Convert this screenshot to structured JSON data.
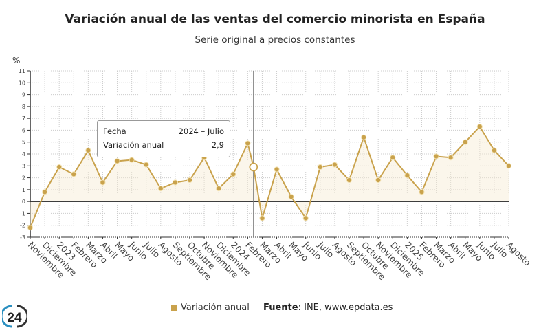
{
  "chart_data": {
    "type": "line",
    "title": "Variación anual de las ventas del comercio minorista en España",
    "subtitle": "Serie original a precios constantes",
    "ylabel": "%",
    "ylim": [
      -3,
      11
    ],
    "yticks": [
      -3,
      -2,
      -1,
      0,
      1,
      2,
      3,
      4,
      5,
      6,
      7,
      8,
      9,
      10,
      11
    ],
    "grid": true,
    "legend_placement": "bottom",
    "categories": [
      "Noviembre",
      "Diciembre",
      "2023",
      "Febrero",
      "Marzo",
      "Abril",
      "Mayo",
      "Junio",
      "Julio",
      "Agosto",
      "Septiembre",
      "Octubre",
      "Noviembre",
      "Diciembre",
      "2024",
      "Febrero",
      "Marzo",
      "Abril",
      "Mayo",
      "Junio",
      "Julio",
      "Agosto",
      "Septiembre",
      "Octubre",
      "Noviembre",
      "Diciembre",
      "2025",
      "Febrero",
      "Marzo",
      "Abril",
      "Mayo",
      "Junio",
      "Julio",
      "Agosto"
    ],
    "series": [
      {
        "name": "Variación anual",
        "color": "#c9a24c",
        "values": [
          -2.2,
          0.8,
          2.9,
          2.3,
          4.3,
          1.6,
          3.4,
          3.5,
          3.1,
          1.1,
          1.6,
          1.8,
          3.7,
          1.1,
          2.3,
          4.9,
          -1.4,
          2.7,
          0.4,
          -1.4,
          2.9,
          3.1,
          1.8,
          5.4,
          1.8,
          3.7,
          2.2,
          0.8,
          3.8,
          3.7,
          5.0,
          6.3,
          4.3,
          3.0
        ]
      }
    ],
    "tooltip": {
      "fecha_label": "Fecha",
      "fecha_value": "2024 – Julio",
      "var_label": "Variación anual",
      "var_value": "2,9",
      "value": 2.9
    }
  },
  "footer": {
    "legend_label": "Variación anual",
    "source_label": "Fuente",
    "source_text": ": INE, ",
    "source_link": "www.epdata.es"
  },
  "logo": {
    "text": "24"
  }
}
